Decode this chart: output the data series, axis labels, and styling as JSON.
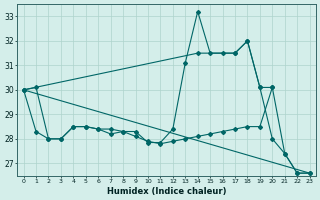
{
  "xlabel": "Humidex (Indice chaleur)",
  "bg_color": "#d4eeea",
  "grid_color": "#aed4cc",
  "line_color": "#006666",
  "xlim": [
    -0.5,
    23.5
  ],
  "ylim": [
    26.5,
    33.5
  ],
  "yticks": [
    27,
    28,
    29,
    30,
    31,
    32,
    33
  ],
  "xticks": [
    0,
    1,
    2,
    3,
    4,
    5,
    6,
    7,
    8,
    9,
    10,
    11,
    12,
    13,
    14,
    15,
    16,
    17,
    18,
    19,
    20,
    21,
    22,
    23
  ],
  "line1_x": [
    0,
    1,
    2,
    3,
    4,
    5,
    6,
    7,
    8,
    9,
    10,
    11,
    12,
    13,
    14,
    15,
    16,
    17,
    18,
    19,
    20,
    21,
    22,
    23
  ],
  "line1_y": [
    30.0,
    30.1,
    28.0,
    28.0,
    28.5,
    28.5,
    28.4,
    28.4,
    28.3,
    28.3,
    27.85,
    27.85,
    28.4,
    31.1,
    33.2,
    31.5,
    31.5,
    31.5,
    32.0,
    30.1,
    28.0,
    27.4,
    26.6,
    26.6
  ],
  "line2_x": [
    0,
    1,
    2,
    3,
    4,
    5,
    6,
    7,
    8,
    9,
    10,
    11,
    12,
    13,
    14,
    15,
    16,
    17,
    18,
    19,
    20,
    21,
    22,
    23
  ],
  "line2_y": [
    30.0,
    28.3,
    28.0,
    28.0,
    28.5,
    28.5,
    28.4,
    28.2,
    28.3,
    28.1,
    27.9,
    27.8,
    27.9,
    28.0,
    28.1,
    28.2,
    28.3,
    28.4,
    28.5,
    28.5,
    30.1,
    27.4,
    26.6,
    26.6
  ],
  "line3_x": [
    0,
    23
  ],
  "line3_y": [
    30.0,
    26.6
  ],
  "line4_x": [
    0,
    14,
    17,
    18,
    19,
    20
  ],
  "line4_y": [
    30.0,
    31.5,
    31.5,
    32.0,
    30.1,
    30.1
  ]
}
